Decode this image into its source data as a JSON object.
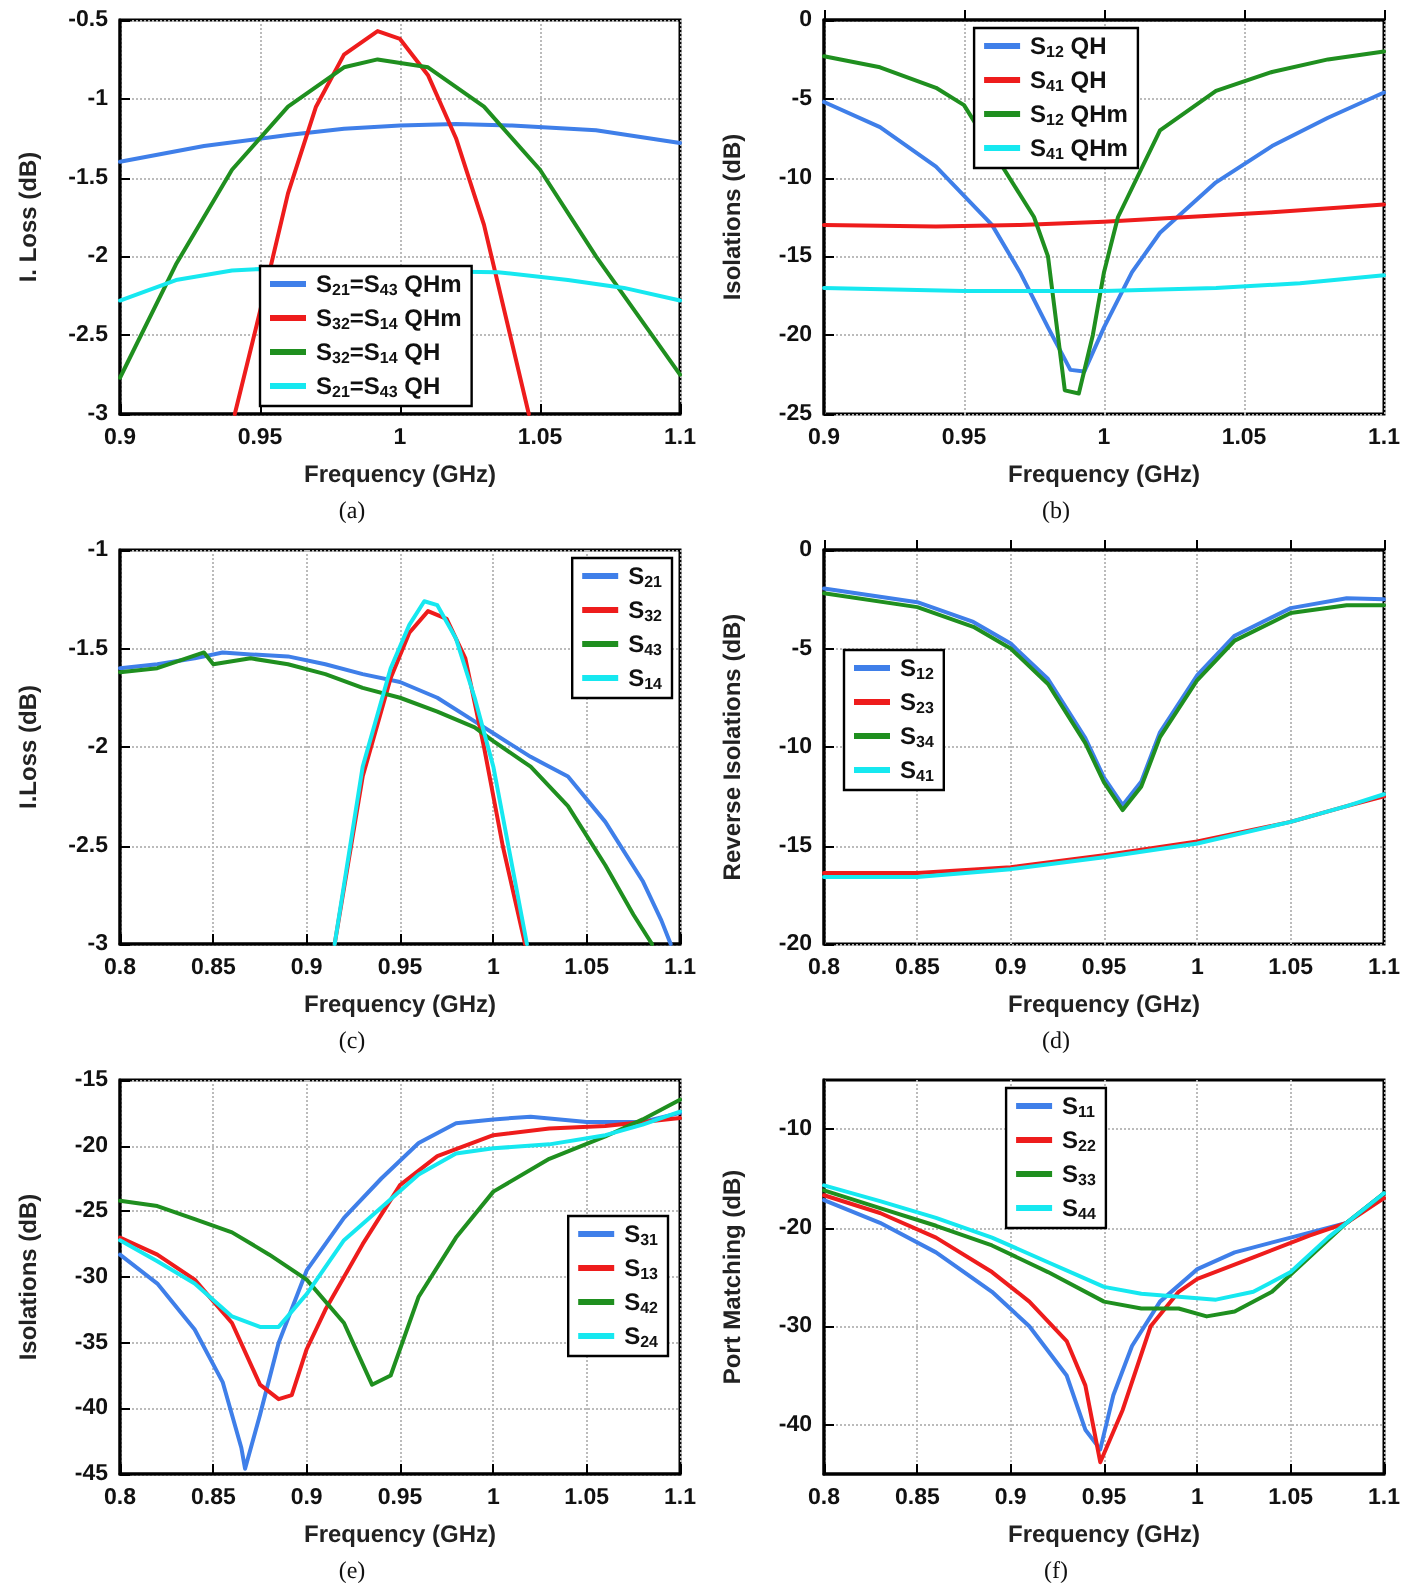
{
  "chart_data": [
    {
      "type": "line",
      "xlabel": "Frequency (GHz)",
      "ylabel": "I. Loss (dB)",
      "annotations": [
        "(a)"
      ],
      "xlim": [
        0.9,
        1.1
      ],
      "xticks": [
        0.9,
        0.95,
        1,
        1.05,
        1.1
      ],
      "ylim": [
        -3,
        -0.5
      ],
      "yticks": [
        -3,
        -2.5,
        -2,
        -1.5,
        -1,
        -0.5
      ],
      "grid": true,
      "legend": "bottom",
      "marker": "none",
      "line_style": "solid",
      "series": [
        {
          "name": "S$_{21}$=S$_{43}$ QHm",
          "color": "#3f7fe9",
          "x": [
            0.9,
            0.93,
            0.96,
            0.98,
            1.0,
            1.02,
            1.04,
            1.07,
            1.1
          ],
          "values": [
            -1.4,
            -1.3,
            -1.23,
            -1.19,
            -1.17,
            -1.16,
            -1.17,
            -1.2,
            -1.28
          ]
        },
        {
          "name": "S$_{32}$=S$_{14}$ QHm",
          "color": "#ee1c1c",
          "x": [
            0.941,
            0.95,
            0.96,
            0.97,
            0.98,
            0.992,
            1.0,
            1.01,
            1.02,
            1.03,
            1.04,
            1.046
          ],
          "values": [
            -3,
            -2.35,
            -1.6,
            -1.05,
            -0.72,
            -0.57,
            -0.62,
            -0.85,
            -1.25,
            -1.8,
            -2.55,
            -3
          ]
        },
        {
          "name": "S$_{32}$=S$_{14}$ QH",
          "color": "#1f8f1f",
          "x": [
            0.9,
            0.92,
            0.94,
            0.96,
            0.98,
            0.992,
            1.01,
            1.03,
            1.05,
            1.07,
            1.09,
            1.1
          ],
          "values": [
            -2.77,
            -2.05,
            -1.45,
            -1.05,
            -0.8,
            -0.75,
            -0.8,
            -1.05,
            -1.45,
            -2.0,
            -2.5,
            -2.75
          ]
        },
        {
          "name": "S$_{21}$=S$_{43}$ QH",
          "color": "#16e8f0",
          "x": [
            0.9,
            0.92,
            0.94,
            0.95,
            1.035,
            1.06,
            1.08,
            1.1
          ],
          "values": [
            -2.28,
            -2.15,
            -2.09,
            -2.08,
            -2.1,
            -2.15,
            -2.2,
            -2.28
          ]
        }
      ]
    },
    {
      "type": "line",
      "xlabel": "Frequency (GHz)",
      "ylabel": "Isolations (dB)",
      "annotations": [
        "(b)"
      ],
      "xlim": [
        0.9,
        1.1
      ],
      "xticks": [
        0.9,
        0.95,
        1,
        1.05,
        1.1
      ],
      "ylim": [
        -25,
        0
      ],
      "yticks": [
        -25,
        -20,
        -15,
        -10,
        -5,
        0
      ],
      "grid": true,
      "legend": "top",
      "marker": "none",
      "line_style": "solid",
      "series": [
        {
          "name": "S$_{12}$ QH",
          "color": "#3f7fe9",
          "x": [
            0.9,
            0.92,
            0.94,
            0.96,
            0.97,
            0.98,
            0.988,
            0.993,
            1.0,
            1.01,
            1.02,
            1.04,
            1.06,
            1.08,
            1.1
          ],
          "values": [
            -5.2,
            -6.8,
            -9.3,
            -13,
            -16,
            -19.5,
            -22.2,
            -22.3,
            -19.5,
            -16,
            -13.5,
            -10.3,
            -8,
            -6.2,
            -4.6
          ]
        },
        {
          "name": "S$_{41}$ QH",
          "color": "#ee1c1c",
          "x": [
            0.9,
            0.94,
            0.97,
            1.0,
            1.03,
            1.06,
            1.1
          ],
          "values": [
            -13,
            -13.1,
            -13,
            -12.8,
            -12.5,
            -12.2,
            -11.7
          ]
        },
        {
          "name": "S$_{12}$ QHm",
          "color": "#1f8f1f",
          "x": [
            0.9,
            0.92,
            0.94,
            0.95,
            0.975,
            0.98,
            0.986,
            0.991,
            0.996,
            1.0,
            1.005,
            1.02,
            1.04,
            1.06,
            1.08,
            1.1
          ],
          "values": [
            -2.3,
            -3,
            -4.3,
            -5.4,
            -12.5,
            -15,
            -23.5,
            -23.7,
            -20,
            -16,
            -12.5,
            -7,
            -4.5,
            -3.3,
            -2.5,
            -2
          ]
        },
        {
          "name": "S$_{41}$ QHm",
          "color": "#16e8f0",
          "x": [
            0.9,
            0.95,
            1.0,
            1.04,
            1.07,
            1.1
          ],
          "values": [
            -17,
            -17.2,
            -17.2,
            -17,
            -16.7,
            -16.2
          ]
        }
      ]
    },
    {
      "type": "line",
      "xlabel": "Frequency (GHz)",
      "ylabel": "I.Loss (dB)",
      "annotations": [
        "(c)"
      ],
      "xlim": [
        0.8,
        1.1
      ],
      "xticks": [
        0.8,
        0.85,
        0.9,
        0.95,
        1,
        1.05,
        1.1
      ],
      "ylim": [
        -3,
        -1
      ],
      "yticks": [
        -3,
        -2.5,
        -2,
        -1.5,
        -1
      ],
      "grid": true,
      "legend": "top right",
      "marker": "none",
      "line_style": "solid",
      "series": [
        {
          "name": "S$_{21}$",
          "color": "#3f7fe9",
          "x": [
            0.8,
            0.82,
            0.84,
            0.855,
            0.87,
            0.89,
            0.91,
            0.93,
            0.95,
            0.97,
            0.99,
            1.0,
            1.02,
            1.04,
            1.06,
            1.08,
            1.09,
            1.095
          ],
          "values": [
            -1.6,
            -1.58,
            -1.55,
            -1.52,
            -1.53,
            -1.54,
            -1.58,
            -1.63,
            -1.67,
            -1.75,
            -1.87,
            -1.93,
            -2.05,
            -2.15,
            -2.38,
            -2.68,
            -2.88,
            -3
          ]
        },
        {
          "name": "S$_{32}$",
          "color": "#ee1c1c",
          "x": [
            0.915,
            0.93,
            0.945,
            0.955,
            0.965,
            0.975,
            0.985,
            0.995,
            1.005,
            1.017
          ],
          "values": [
            -3,
            -2.15,
            -1.65,
            -1.42,
            -1.31,
            -1.35,
            -1.55,
            -2.0,
            -2.5,
            -3
          ]
        },
        {
          "name": "S$_{43}$",
          "color": "#1f8f1f",
          "x": [
            0.8,
            0.82,
            0.845,
            0.85,
            0.87,
            0.89,
            0.91,
            0.93,
            0.95,
            0.97,
            0.99,
            1.0,
            1.02,
            1.04,
            1.06,
            1.075,
            1.085
          ],
          "values": [
            -1.62,
            -1.6,
            -1.52,
            -1.58,
            -1.55,
            -1.58,
            -1.63,
            -1.7,
            -1.75,
            -1.82,
            -1.9,
            -1.97,
            -2.1,
            -2.3,
            -2.6,
            -2.85,
            -3
          ]
        },
        {
          "name": "S$_{14}$",
          "color": "#16e8f0",
          "x": [
            0.915,
            0.93,
            0.945,
            0.955,
            0.963,
            0.97,
            0.98,
            0.99,
            1.0,
            1.008,
            1.018
          ],
          "values": [
            -3,
            -2.1,
            -1.6,
            -1.38,
            -1.26,
            -1.28,
            -1.45,
            -1.75,
            -2.1,
            -2.5,
            -3
          ]
        }
      ]
    },
    {
      "type": "line",
      "xlabel": "Frequency (GHz)",
      "ylabel": "Reverse Isolations (dB)",
      "annotations": [
        "(d)"
      ],
      "xlim": [
        0.8,
        1.1
      ],
      "xticks": [
        0.8,
        0.85,
        0.9,
        0.95,
        1,
        1.05,
        1.1
      ],
      "ylim": [
        -20,
        0
      ],
      "yticks": [
        -20,
        -15,
        -10,
        -5,
        0
      ],
      "grid": true,
      "legend": "left",
      "marker": "none",
      "line_style": "solid",
      "series": [
        {
          "name": "S$_{12}$",
          "color": "#3f7fe9",
          "x": [
            0.8,
            0.85,
            0.88,
            0.9,
            0.92,
            0.94,
            0.95,
            0.96,
            0.97,
            0.98,
            1.0,
            1.02,
            1.05,
            1.08,
            1.1
          ],
          "values": [
            -1.95,
            -2.65,
            -3.65,
            -4.75,
            -6.55,
            -9.55,
            -11.55,
            -12.95,
            -11.75,
            -9.25,
            -6.35,
            -4.35,
            -2.95,
            -2.45,
            -2.5
          ]
        },
        {
          "name": "S$_{23}$",
          "color": "#ee1c1c",
          "x": [
            0.8,
            0.85,
            0.9,
            0.95,
            1.0,
            1.05,
            1.08,
            1.1
          ],
          "values": [
            -16.4,
            -16.4,
            -16.1,
            -15.5,
            -14.8,
            -13.8,
            -13,
            -12.5
          ]
        },
        {
          "name": "S$_{34}$",
          "color": "#1f8f1f",
          "x": [
            0.8,
            0.85,
            0.88,
            0.9,
            0.92,
            0.94,
            0.95,
            0.96,
            0.97,
            0.98,
            1.0,
            1.02,
            1.05,
            1.08,
            1.1
          ],
          "values": [
            -2.2,
            -2.9,
            -3.9,
            -5,
            -6.8,
            -9.8,
            -11.8,
            -13.2,
            -12,
            -9.5,
            -6.6,
            -4.6,
            -3.2,
            -2.8,
            -2.8
          ]
        },
        {
          "name": "S$_{41}$",
          "color": "#16e8f0",
          "x": [
            0.8,
            0.85,
            0.9,
            0.95,
            1.0,
            1.05,
            1.08,
            1.1
          ],
          "values": [
            -16.6,
            -16.6,
            -16.2,
            -15.6,
            -14.9,
            -13.8,
            -13,
            -12.4
          ]
        }
      ]
    },
    {
      "type": "line",
      "xlabel": "Frequency (GHz)",
      "ylabel": "Isolations (dB)",
      "annotations": [
        "(e)"
      ],
      "xlim": [
        0.8,
        1.1
      ],
      "xticks": [
        0.8,
        0.85,
        0.9,
        0.95,
        1,
        1.05,
        1.1
      ],
      "ylim": [
        -45,
        -15
      ],
      "yticks": [
        -45,
        -40,
        -35,
        -30,
        -25,
        -20,
        -15
      ],
      "grid": true,
      "legend": "right",
      "marker": "none",
      "line_style": "solid",
      "series": [
        {
          "name": "S$_{31}$",
          "color": "#3f7fe9",
          "x": [
            0.8,
            0.82,
            0.84,
            0.855,
            0.865,
            0.867,
            0.875,
            0.885,
            0.9,
            0.92,
            0.94,
            0.96,
            0.98,
            1.0,
            1.02,
            1.05,
            1.08,
            1.1
          ],
          "values": [
            -28.3,
            -30.5,
            -34,
            -38,
            -43,
            -44.6,
            -40.5,
            -35,
            -29.5,
            -25.5,
            -22.5,
            -19.8,
            -18.3,
            -18,
            -17.8,
            -18.2,
            -18.2,
            -17.5
          ]
        },
        {
          "name": "S$_{13}$",
          "color": "#ee1c1c",
          "x": [
            0.8,
            0.82,
            0.84,
            0.86,
            0.875,
            0.885,
            0.892,
            0.9,
            0.91,
            0.93,
            0.95,
            0.97,
            1.0,
            1.03,
            1.06,
            1.1
          ],
          "values": [
            -27,
            -28.3,
            -30.2,
            -33.5,
            -38.2,
            -39.3,
            -39,
            -35.5,
            -32.5,
            -27.5,
            -23,
            -20.8,
            -19.2,
            -18.7,
            -18.5,
            -17.9
          ]
        },
        {
          "name": "S$_{42}$",
          "color": "#1f8f1f",
          "x": [
            0.8,
            0.82,
            0.84,
            0.86,
            0.88,
            0.9,
            0.92,
            0.935,
            0.945,
            0.96,
            0.98,
            1.0,
            1.03,
            1.06,
            1.08,
            1.1
          ],
          "values": [
            -24.2,
            -24.6,
            -25.6,
            -26.6,
            -28.3,
            -30.2,
            -33.5,
            -38.2,
            -37.5,
            -31.5,
            -27,
            -23.5,
            -21,
            -19.3,
            -18,
            -16.5
          ]
        },
        {
          "name": "S$_{24}$",
          "color": "#16e8f0",
          "x": [
            0.8,
            0.82,
            0.84,
            0.86,
            0.875,
            0.885,
            0.9,
            0.92,
            0.94,
            0.96,
            0.98,
            1.0,
            1.03,
            1.06,
            1.08,
            1.1
          ],
          "values": [
            -27.2,
            -28.8,
            -30.5,
            -33,
            -33.8,
            -33.8,
            -31.3,
            -27.2,
            -24.7,
            -22.2,
            -20.6,
            -20.2,
            -19.9,
            -19.2,
            -18.4,
            -17.4
          ]
        }
      ]
    },
    {
      "type": "line",
      "xlabel": "Frequency (GHz)",
      "ylabel": "Port Matching (dB)",
      "annotations": [
        "(f)"
      ],
      "xlim": [
        0.8,
        1.1
      ],
      "xticks": [
        0.8,
        0.85,
        0.9,
        0.95,
        1,
        1.05,
        1.1
      ],
      "ylim": [
        -45,
        -5
      ],
      "yticks": [
        -40,
        -30,
        -20,
        -10
      ],
      "grid": true,
      "legend": "top",
      "marker": "none",
      "line_style": "solid",
      "series": [
        {
          "name": "S$_{11}$",
          "color": "#3f7fe9",
          "x": [
            0.8,
            0.83,
            0.86,
            0.89,
            0.91,
            0.93,
            0.94,
            0.948,
            0.955,
            0.965,
            0.98,
            1.0,
            1.02,
            1.05,
            1.08,
            1.1
          ],
          "values": [
            -17.2,
            -19.5,
            -22.5,
            -26.5,
            -30,
            -35,
            -40.5,
            -42.5,
            -37,
            -32,
            -27.5,
            -24.2,
            -22.5,
            -21,
            -19.5,
            -16.5
          ]
        },
        {
          "name": "S$_{22}$",
          "color": "#ee1c1c",
          "x": [
            0.8,
            0.83,
            0.86,
            0.89,
            0.91,
            0.93,
            0.94,
            0.948,
            0.96,
            0.975,
            0.99,
            1.0,
            1.03,
            1.06,
            1.08,
            1.1
          ],
          "values": [
            -16.7,
            -18.5,
            -21,
            -24.5,
            -27.5,
            -31.5,
            -36,
            -43.8,
            -38.5,
            -30,
            -26.5,
            -25.2,
            -23,
            -20.8,
            -19.5,
            -17
          ]
        },
        {
          "name": "S$_{33}$",
          "color": "#1f8f1f",
          "x": [
            0.8,
            0.83,
            0.86,
            0.89,
            0.92,
            0.95,
            0.97,
            0.99,
            1.005,
            1.02,
            1.04,
            1.06,
            1.08,
            1.1
          ],
          "values": [
            -16.2,
            -18,
            -19.8,
            -21.8,
            -24.5,
            -27.5,
            -28.2,
            -28.2,
            -29,
            -28.5,
            -26.5,
            -23,
            -19.5,
            -16.5
          ]
        },
        {
          "name": "S$_{44}$",
          "color": "#16e8f0",
          "x": [
            0.8,
            0.83,
            0.86,
            0.89,
            0.92,
            0.95,
            0.97,
            0.99,
            1.01,
            1.03,
            1.05,
            1.07,
            1.1
          ],
          "values": [
            -15.7,
            -17.3,
            -19,
            -21,
            -23.5,
            -26,
            -26.7,
            -27,
            -27.3,
            -26.5,
            -24.5,
            -21,
            -16.5
          ]
        }
      ]
    }
  ]
}
